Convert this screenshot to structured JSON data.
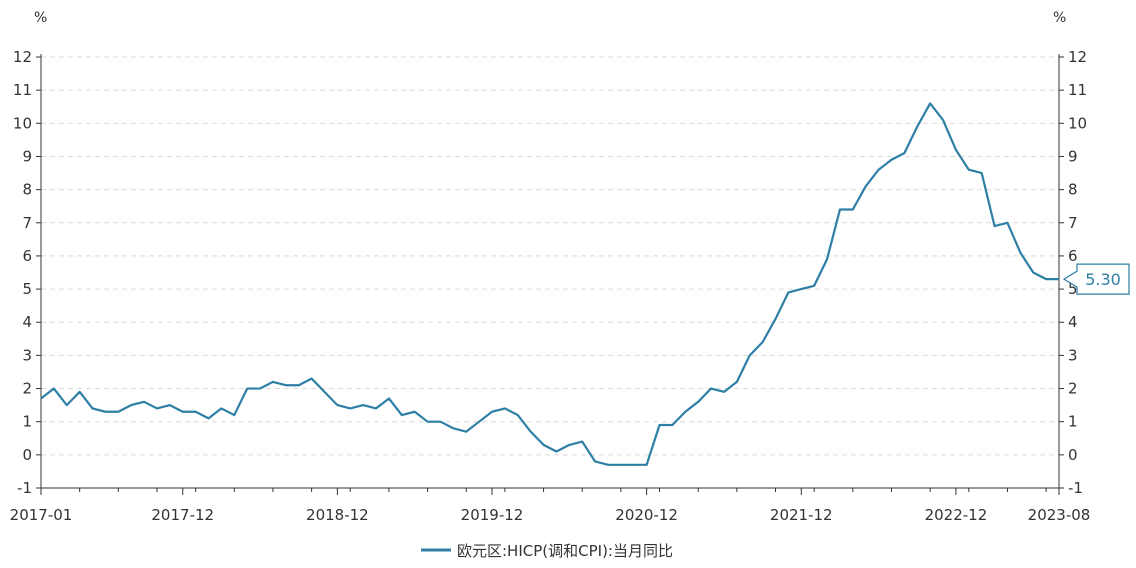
{
  "chart_data": {
    "type": "line",
    "y_unit_left": "%",
    "y_unit_right": "%",
    "ylim": [
      -1,
      12
    ],
    "y_ticks": [
      -1,
      0,
      1,
      2,
      3,
      4,
      5,
      6,
      7,
      8,
      9,
      10,
      11,
      12
    ],
    "x_tick_labels": [
      "2017-01",
      "2017-12",
      "2018-12",
      "2019-12",
      "2020-12",
      "2021-12",
      "2022-12",
      "2023-08"
    ],
    "x_start": "2017-01",
    "grid": true,
    "legend_position": "bottom-center",
    "last_value_label": "5.30",
    "colors": {
      "series": "#2e7fa6",
      "grid": "#d9d9d9",
      "axis": "#333333"
    },
    "series": [
      {
        "name": "欧元区:HICP(调和CPI):当月同比",
        "values": [
          1.7,
          2.0,
          1.5,
          1.9,
          1.4,
          1.3,
          1.3,
          1.5,
          1.6,
          1.4,
          1.5,
          1.3,
          1.3,
          1.1,
          1.4,
          1.2,
          2.0,
          2.0,
          2.2,
          2.1,
          2.1,
          2.3,
          1.9,
          1.5,
          1.4,
          1.5,
          1.4,
          1.7,
          1.2,
          1.3,
          1.0,
          1.0,
          0.8,
          0.7,
          1.0,
          1.3,
          1.4,
          1.2,
          0.7,
          0.3,
          0.1,
          0.3,
          0.4,
          -0.2,
          -0.3,
          -0.3,
          -0.3,
          -0.3,
          0.9,
          0.9,
          1.3,
          1.6,
          2.0,
          1.9,
          2.2,
          3.0,
          3.4,
          4.1,
          4.9,
          5.0,
          5.1,
          5.9,
          7.4,
          7.4,
          8.1,
          8.6,
          8.9,
          9.1,
          9.9,
          10.6,
          10.1,
          9.2,
          8.6,
          8.5,
          6.9,
          7.0,
          6.1,
          5.5,
          5.3,
          5.3
        ]
      }
    ]
  }
}
